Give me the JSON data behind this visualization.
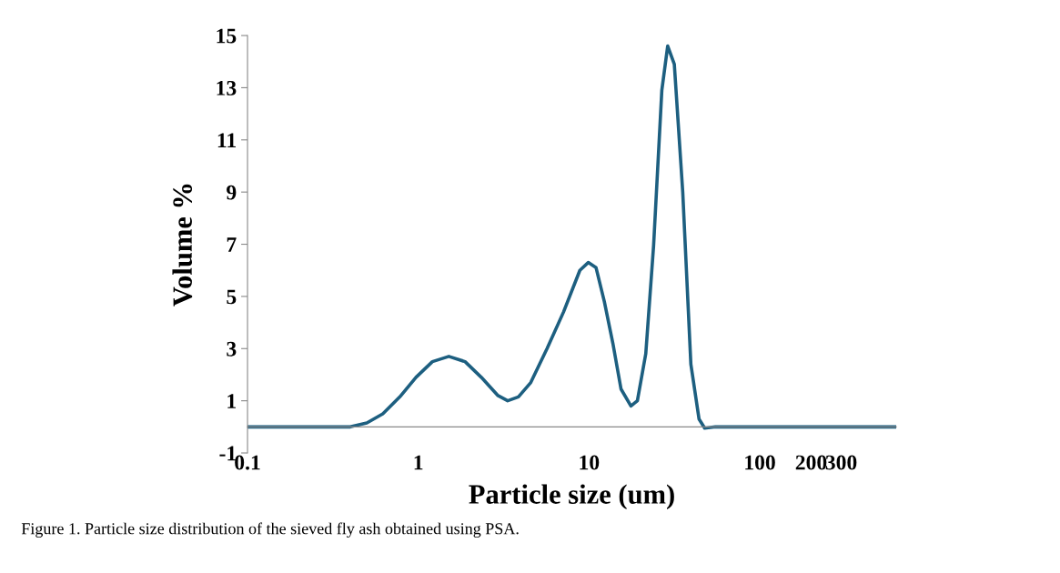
{
  "chart_data": {
    "type": "line",
    "xlabel": "Particle size (um)",
    "ylabel": "Volume %",
    "log": "x",
    "annotations": [
      "Figure 1. Particle size distribution of the sieved fly ash obtained using PSA."
    ],
    "x": [
      0.1,
      0.4,
      0.5,
      0.62,
      0.78,
      0.97,
      1.21,
      1.51,
      1.88,
      2.34,
      2.93,
      3.34,
      3.86,
      4.56,
      5.68,
      7.09,
      8.84,
      9.9,
      11.0,
      12.3,
      13.8,
      15.4,
      17.6,
      19.2,
      21.5,
      23.9,
      26.7,
      28.9,
      31.6,
      35.4,
      39.5,
      44.1,
      47.6,
      55,
      630
    ],
    "series": [
      {
        "color": "#1d5f80",
        "values": [
          0,
          0,
          0.15,
          0.5,
          1.15,
          1.9,
          2.5,
          2.7,
          2.5,
          1.9,
          1.2,
          1.0,
          1.15,
          1.7,
          3.0,
          4.4,
          6.0,
          6.3,
          6.1,
          4.8,
          3.2,
          1.45,
          0.8,
          1.0,
          2.8,
          6.95,
          12.9,
          14.6,
          13.9,
          9.0,
          2.4,
          0.3,
          -0.05,
          0,
          0
        ]
      }
    ],
    "xlim": [
      0.1,
      630
    ],
    "xticks": [
      0.1,
      1,
      10,
      100,
      200,
      300
    ],
    "ylim": [
      -1,
      15
    ],
    "yticks": [
      -1,
      1,
      3,
      5,
      7,
      9,
      11,
      13,
      15
    ],
    "grid": false,
    "legend": false,
    "marker": "none",
    "line_style": "solid"
  }
}
